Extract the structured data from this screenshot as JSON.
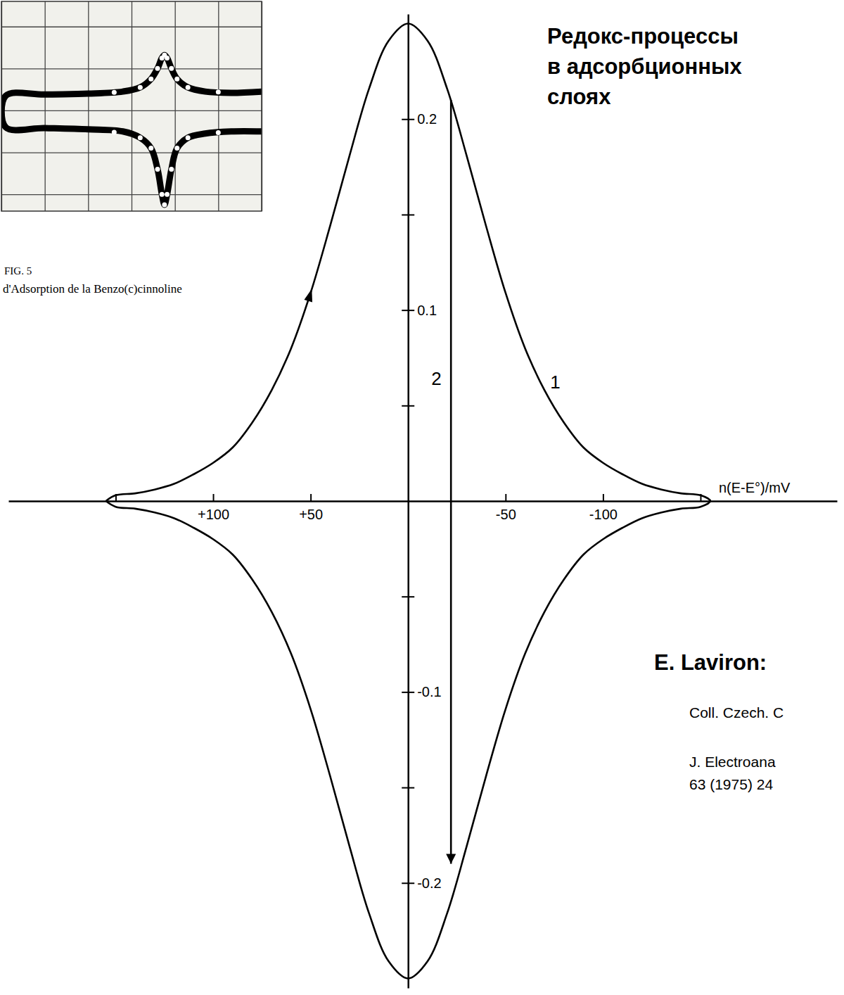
{
  "title": [
    "Редокс-процессы",
    "в адсорбционных",
    "слоях"
  ],
  "author": "E. Laviron:",
  "references": [
    "Coll. Czech. C",
    "J. Electroana",
    "63 (1975) 24"
  ],
  "chart_data": [
    {
      "type": "line",
      "xlabel": "n(E-E°)/mV",
      "xlim": [
        205,
        -220
      ],
      "ylim": [
        -0.255,
        0.255
      ],
      "xticks": [
        {
          "value": 100,
          "label": "+100"
        },
        {
          "value": 50,
          "label": "+50"
        },
        -50,
        -100
      ],
      "xticks_minor": [
        150,
        -150
      ],
      "yticks": [
        0.2,
        0.1,
        -0.1,
        -0.2
      ],
      "yticks_minor": [
        0.15,
        0.05,
        -0.05,
        -0.15
      ],
      "series": [
        {
          "name": "1",
          "color": "#000000",
          "marker": "arrow",
          "x": [
            155,
            150,
            140,
            130,
            120,
            110,
            100,
            90,
            80,
            70,
            60,
            50,
            40,
            30,
            20,
            10,
            0,
            -10,
            -20,
            -30,
            -40,
            -50,
            -60,
            -70,
            -80,
            -90,
            -100,
            -110,
            -120,
            -130,
            -140,
            -150,
            -155,
            -150,
            -140,
            -130,
            -120,
            -110,
            -100,
            -90,
            -80,
            -70,
            -60,
            -50,
            -40,
            -30,
            -20,
            -10,
            0,
            10,
            20,
            30,
            40,
            50,
            60,
            70,
            80,
            90,
            100,
            110,
            120,
            130,
            140,
            150,
            155
          ],
          "values": [
            0,
            0.003,
            0.004,
            0.006,
            0.009,
            0.014,
            0.02,
            0.028,
            0.041,
            0.058,
            0.08,
            0.109,
            0.144,
            0.181,
            0.216,
            0.241,
            0.25,
            0.241,
            0.216,
            0.181,
            0.144,
            0.109,
            0.08,
            0.058,
            0.041,
            0.028,
            0.02,
            0.014,
            0.009,
            0.006,
            0.004,
            0.003,
            0,
            -0.003,
            -0.004,
            -0.006,
            -0.009,
            -0.014,
            -0.02,
            -0.028,
            -0.041,
            -0.058,
            -0.08,
            -0.109,
            -0.144,
            -0.181,
            -0.216,
            -0.241,
            -0.25,
            -0.241,
            -0.216,
            -0.181,
            -0.144,
            -0.109,
            -0.08,
            -0.058,
            -0.041,
            -0.028,
            -0.02,
            -0.014,
            -0.009,
            -0.006,
            -0.004,
            -0.003,
            0
          ]
        },
        {
          "name": "2",
          "color": "#000000",
          "marker": "arrow",
          "x": [
            -22,
            -22
          ],
          "values": [
            0.21,
            -0.19
          ]
        }
      ]
    },
    {
      "type": "line",
      "title": "FIG. 5",
      "subtitle": "d'Adsorption de la Benzo(c)cinnoline",
      "xlim": [
        0,
        6
      ],
      "ylim": [
        -0.4,
        4.6
      ],
      "xticks": [
        0,
        1,
        2,
        3,
        4,
        5,
        6
      ],
      "yticks": [
        0,
        1,
        2,
        3,
        4
      ],
      "grid": true,
      "tick_labels": false,
      "series": [
        {
          "color": "#000000",
          "x": [
            6,
            5.3,
            4.7,
            4.3,
            4.05,
            3.92,
            3.82,
            3.76,
            3.7,
            3.6,
            3.45,
            3.2,
            2.8,
            2,
            1,
            0.1,
            0.1,
            1,
            2,
            2.8,
            3.2,
            3.45,
            3.6,
            3.7,
            3.76,
            3.82,
            3.92,
            4.05,
            4.3,
            4.7,
            5.3,
            6
          ],
          "values": [
            2.45,
            2.42,
            2.45,
            2.55,
            2.75,
            3,
            3.25,
            3.32,
            3.25,
            3,
            2.75,
            2.55,
            2.45,
            2.4,
            2.38,
            2.35,
            1.6,
            1.58,
            1.55,
            1.5,
            1.35,
            1.1,
            0.6,
            0,
            -0.25,
            0,
            0.6,
            1.1,
            1.35,
            1.45,
            1.5,
            1.5
          ]
        },
        {
          "type": "scatter",
          "marker": "circle",
          "color": "#ffffff",
          "x": [
            2.6,
            3.2,
            3.45,
            3.6,
            3.7,
            3.76,
            3.82,
            3.92,
            4.05,
            4.3,
            5,
            2.6,
            3.2,
            3.45,
            3.6,
            3.7,
            3.76,
            3.82,
            3.92,
            4.05,
            4.3,
            5
          ],
          "values": [
            2.43,
            2.55,
            2.75,
            3,
            3.25,
            3.32,
            3.25,
            3,
            2.75,
            2.55,
            2.44,
            1.48,
            1.35,
            1.1,
            0.6,
            0,
            -0.25,
            0,
            0.6,
            1.1,
            1.35,
            1.47
          ]
        }
      ]
    }
  ]
}
